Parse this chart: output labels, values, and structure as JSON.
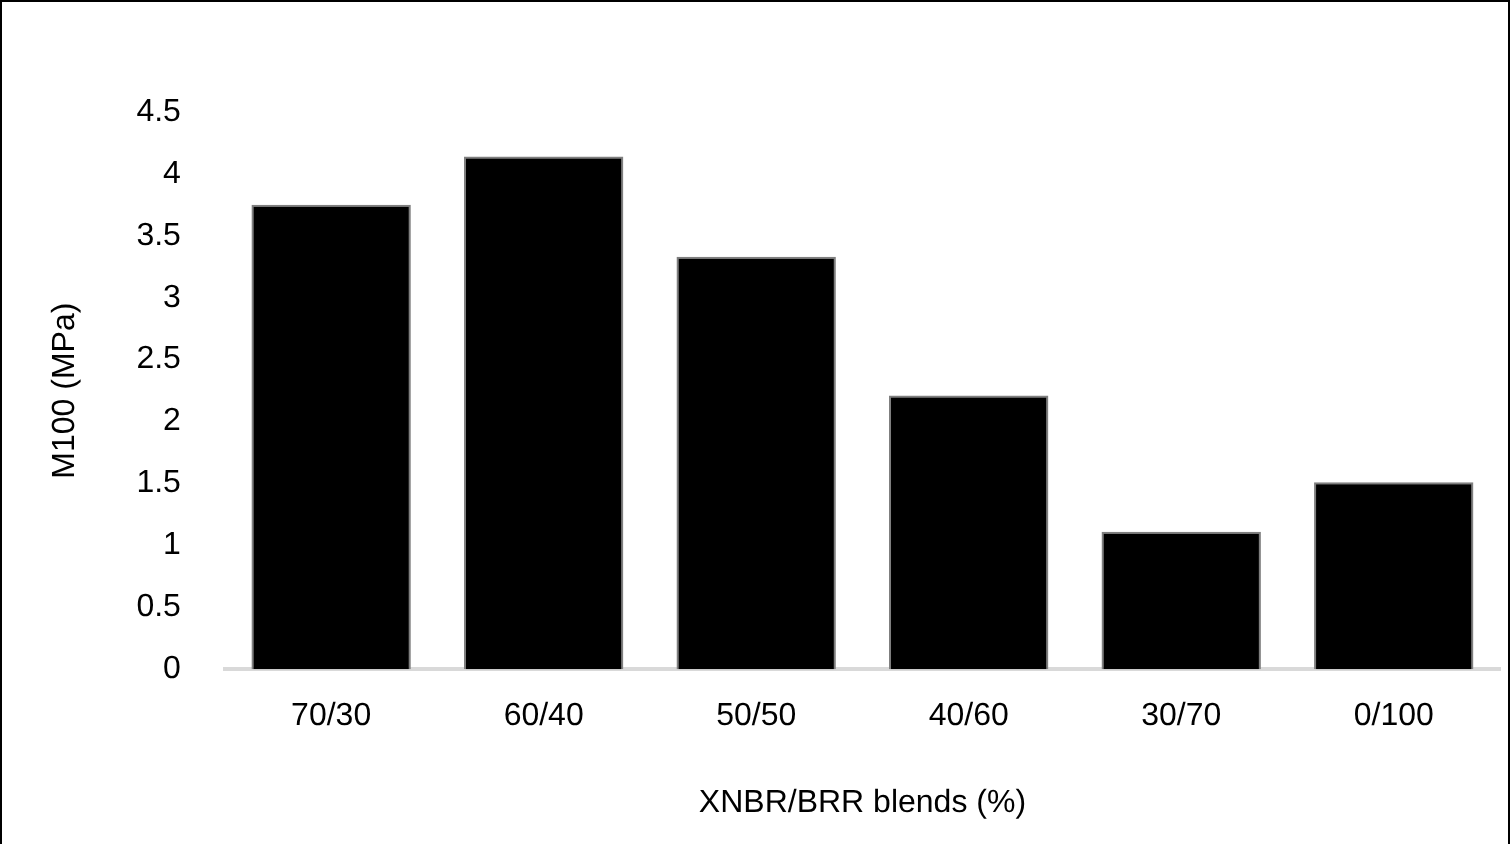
{
  "chart_data": {
    "type": "bar",
    "xlabel": "XNBR/BRR blends (%)",
    "ylabel": "M100 (MPa)",
    "categories": [
      "70/30",
      "60/40",
      "50/50",
      "40/60",
      "30/70",
      "0/100"
    ],
    "values": [
      3.75,
      4.14,
      3.33,
      2.21,
      1.11,
      1.51
    ],
    "color": "#000000",
    "ylim": [
      0,
      4.5
    ],
    "yticks": [
      0,
      0.5,
      1,
      1.5,
      2,
      2.5,
      3,
      3.5,
      4,
      4.5
    ],
    "grid": false,
    "legend": false
  }
}
